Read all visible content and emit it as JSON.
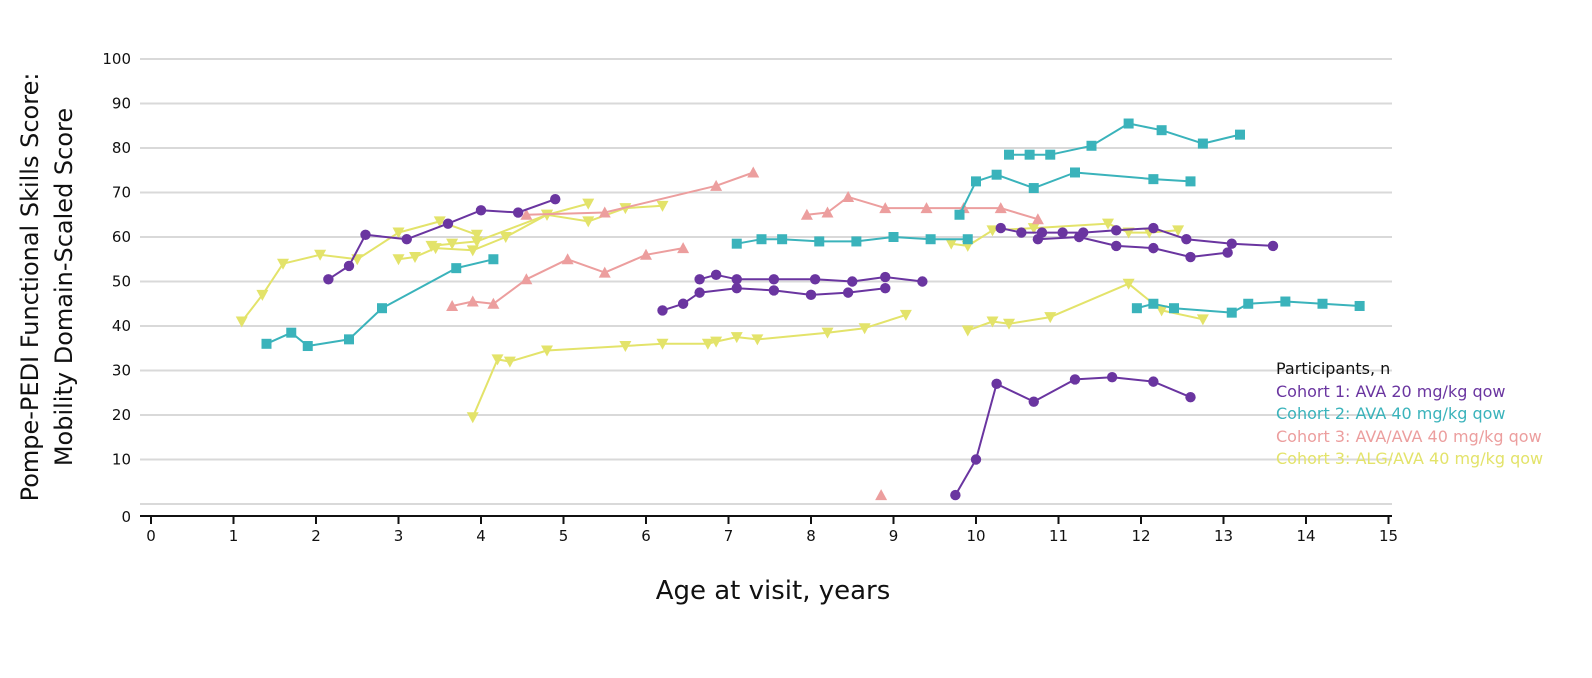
{
  "chart_data": {
    "type": "line",
    "ylabel_line1": "Pompe-PEDI Functional Skills Score:",
    "ylabel_line2": "Mobility Domain-Scaled Score",
    "xlabel": "Age at visit, years",
    "xlim": [
      0,
      15
    ],
    "ylim": [
      0,
      100
    ],
    "x_ticks": [
      "0",
      "1",
      "2",
      "3",
      "4",
      "5",
      "6",
      "7",
      "8",
      "9",
      "10",
      "11",
      "12",
      "13",
      "14",
      "15"
    ],
    "y_ticks": [
      "0",
      "10",
      "20",
      "30",
      "40",
      "50",
      "60",
      "70",
      "80",
      "90",
      "100"
    ],
    "grid": "horizontal",
    "legend_title": "Participants, n",
    "legend_position": "right",
    "cohorts": [
      {
        "name": "Cohort 1: AVA 20 mg/kg qow",
        "color": "#6a35a0",
        "marker": "circle"
      },
      {
        "name": "Cohort 2: AVA 40 mg/kg qow",
        "color": "#3ab3bb",
        "marker": "square"
      },
      {
        "name": "Cohort 3: AVA/AVA 40 mg/kg qow",
        "color": "#ec9e9e",
        "marker": "triangle-up"
      },
      {
        "name": "Cohort 3: ALG/AVA 40 mg/kg qow",
        "color": "#e3e36a",
        "marker": "triangle-down"
      }
    ],
    "series": [
      {
        "cohort": 0,
        "points": [
          [
            2.15,
            50.5
          ],
          [
            2.4,
            53.5
          ],
          [
            2.6,
            60.5
          ],
          [
            3.1,
            59.5
          ],
          [
            3.6,
            63
          ],
          [
            4.0,
            66
          ],
          [
            4.45,
            65.5
          ],
          [
            4.9,
            68.5
          ]
        ]
      },
      {
        "cohort": 0,
        "points": [
          [
            6.2,
            43.5
          ],
          [
            6.45,
            45
          ],
          [
            6.65,
            47.5
          ],
          [
            7.1,
            48.5
          ],
          [
            7.55,
            48
          ],
          [
            8.0,
            47
          ],
          [
            8.45,
            47.5
          ],
          [
            8.9,
            48.5
          ]
        ]
      },
      {
        "cohort": 0,
        "points": [
          [
            6.65,
            50.5
          ],
          [
            6.85,
            51.5
          ],
          [
            7.1,
            50.5
          ],
          [
            7.55,
            50.5
          ],
          [
            8.05,
            50.5
          ],
          [
            8.5,
            50
          ],
          [
            8.9,
            51
          ],
          [
            9.35,
            50
          ]
        ]
      },
      {
        "cohort": 0,
        "points": [
          [
            10.3,
            62
          ],
          [
            10.55,
            61
          ],
          [
            10.8,
            61
          ],
          [
            11.05,
            61
          ],
          [
            11.3,
            61
          ],
          [
            11.7,
            61.5
          ],
          [
            12.15,
            62
          ],
          [
            12.55,
            59.5
          ],
          [
            13.1,
            58.5
          ],
          [
            13.6,
            58
          ]
        ]
      },
      {
        "cohort": 0,
        "points": [
          [
            10.75,
            59.5
          ],
          [
            11.25,
            60
          ],
          [
            11.7,
            58
          ],
          [
            12.15,
            57.5
          ],
          [
            12.6,
            55.5
          ],
          [
            13.05,
            56.5
          ]
        ]
      },
      {
        "cohort": 0,
        "points": [
          [
            9.75,
            2
          ],
          [
            10.0,
            10
          ],
          [
            10.25,
            27
          ],
          [
            10.7,
            23
          ],
          [
            11.2,
            28
          ],
          [
            11.65,
            28.5
          ],
          [
            12.15,
            27.5
          ],
          [
            12.6,
            24
          ]
        ]
      },
      {
        "cohort": 1,
        "points": [
          [
            1.4,
            36
          ],
          [
            1.7,
            38.5
          ],
          [
            1.9,
            35.5
          ],
          [
            2.4,
            37
          ],
          [
            2.8,
            44
          ],
          [
            3.7,
            53
          ],
          [
            4.15,
            55
          ]
        ]
      },
      {
        "cohort": 1,
        "points": [
          [
            7.1,
            58.5
          ],
          [
            7.4,
            59.5
          ],
          [
            7.65,
            59.5
          ],
          [
            8.1,
            59
          ],
          [
            8.55,
            59
          ],
          [
            9.0,
            60
          ],
          [
            9.45,
            59.5
          ],
          [
            9.9,
            59.5
          ]
        ]
      },
      {
        "cohort": 1,
        "points": [
          [
            9.8,
            65
          ],
          [
            10.0,
            72.5
          ],
          [
            10.25,
            74
          ],
          [
            10.7,
            71
          ],
          [
            11.2,
            74.5
          ],
          [
            12.15,
            73
          ],
          [
            12.6,
            72.5
          ]
        ]
      },
      {
        "cohort": 1,
        "points": [
          [
            10.4,
            78.5
          ],
          [
            10.65,
            78.5
          ],
          [
            10.9,
            78.5
          ],
          [
            11.4,
            80.5
          ],
          [
            11.85,
            85.5
          ],
          [
            12.25,
            84
          ],
          [
            12.75,
            81
          ],
          [
            13.2,
            83
          ]
        ]
      },
      {
        "cohort": 1,
        "points": [
          [
            11.95,
            44
          ],
          [
            12.15,
            45
          ],
          [
            12.4,
            44
          ],
          [
            13.1,
            43
          ],
          [
            13.3,
            45
          ],
          [
            13.75,
            45.5
          ],
          [
            14.2,
            45
          ],
          [
            14.65,
            44.5
          ]
        ]
      },
      {
        "cohort": 2,
        "points": [
          [
            3.65,
            44.5
          ],
          [
            3.9,
            45.5
          ],
          [
            4.15,
            45
          ],
          [
            4.55,
            50.5
          ],
          [
            5.05,
            55
          ],
          [
            5.5,
            52
          ],
          [
            6.0,
            56
          ],
          [
            6.45,
            57.5
          ]
        ]
      },
      {
        "cohort": 2,
        "points": [
          [
            4.55,
            65
          ],
          [
            5.5,
            65.5
          ],
          [
            6.85,
            71.5
          ],
          [
            7.3,
            74.5
          ]
        ]
      },
      {
        "cohort": 2,
        "points": [
          [
            7.95,
            65
          ],
          [
            8.2,
            65.5
          ],
          [
            8.45,
            69
          ],
          [
            8.9,
            66.5
          ],
          [
            9.4,
            66.5
          ],
          [
            9.85,
            66.5
          ],
          [
            10.3,
            66.5
          ],
          [
            10.75,
            64
          ]
        ]
      },
      {
        "cohort": 2,
        "points": [
          [
            8.85,
            2
          ]
        ]
      },
      {
        "cohort": 3,
        "points": [
          [
            1.1,
            41
          ],
          [
            1.35,
            47
          ],
          [
            1.6,
            54
          ],
          [
            2.05,
            56
          ],
          [
            2.5,
            55
          ],
          [
            3.0,
            61
          ],
          [
            3.5,
            63.5
          ],
          [
            3.95,
            60.5
          ]
        ]
      },
      {
        "cohort": 3,
        "points": [
          [
            3.0,
            55
          ],
          [
            3.2,
            55.5
          ],
          [
            3.45,
            57.5
          ],
          [
            3.9,
            57
          ],
          [
            4.3,
            60
          ],
          [
            4.8,
            65
          ],
          [
            5.3,
            63.5
          ],
          [
            5.75,
            66.5
          ],
          [
            6.2,
            67
          ]
        ]
      },
      {
        "cohort": 3,
        "points": [
          [
            3.4,
            58
          ],
          [
            3.65,
            58.5
          ],
          [
            3.95,
            59
          ],
          [
            4.8,
            65
          ],
          [
            5.3,
            67.5
          ]
        ]
      },
      {
        "cohort": 3,
        "points": [
          [
            3.9,
            19.5
          ],
          [
            4.2,
            32.5
          ],
          [
            4.35,
            32
          ],
          [
            4.8,
            34.5
          ],
          [
            5.75,
            35.5
          ],
          [
            6.2,
            36
          ],
          [
            6.75,
            36
          ],
          [
            6.85,
            36.5
          ],
          [
            7.1,
            37.5
          ],
          [
            7.35,
            37
          ],
          [
            8.2,
            38.5
          ],
          [
            8.65,
            39.5
          ],
          [
            9.15,
            42.5
          ]
        ]
      },
      {
        "cohort": 3,
        "points": [
          [
            9.7,
            58.5
          ],
          [
            9.9,
            58
          ],
          [
            10.2,
            61.5
          ],
          [
            10.7,
            62
          ],
          [
            11.6,
            63
          ],
          [
            11.85,
            61
          ],
          [
            12.1,
            61
          ],
          [
            12.45,
            61.5
          ]
        ]
      },
      {
        "cohort": 3,
        "points": [
          [
            9.9,
            39
          ],
          [
            10.2,
            41
          ],
          [
            10.4,
            40.5
          ],
          [
            10.9,
            42
          ],
          [
            11.85,
            49.5
          ],
          [
            12.25,
            43.5
          ],
          [
            12.75,
            41.5
          ]
        ]
      }
    ]
  }
}
